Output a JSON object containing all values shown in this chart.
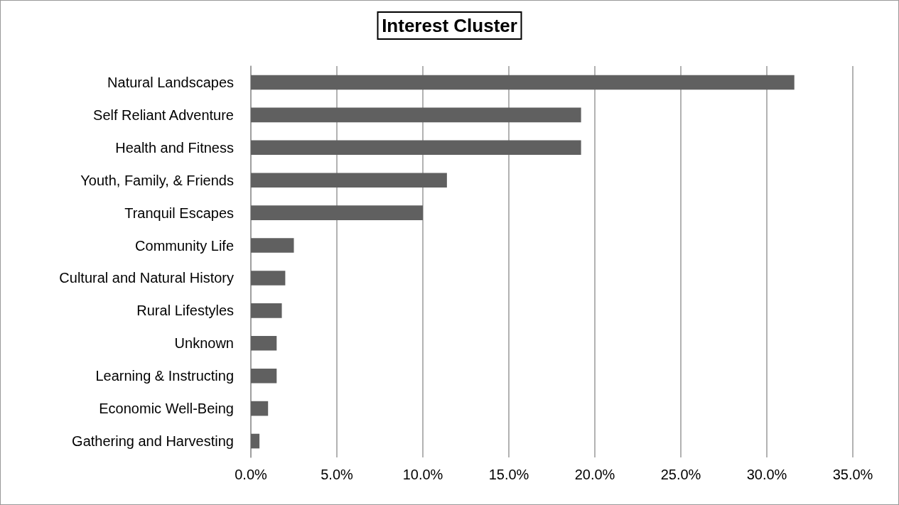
{
  "chart_data": {
    "type": "bar",
    "orientation": "horizontal",
    "title": "Interest Cluster",
    "categories": [
      "Natural Landscapes",
      "Self Reliant Adventure",
      "Health and Fitness",
      "Youth, Family, & Friends",
      "Tranquil Escapes",
      "Community Life",
      "Cultural and Natural History",
      "Rural Lifestyles",
      "Unknown",
      "Learning & Instructing",
      "Economic Well-Being",
      "Gathering and Harvesting"
    ],
    "values": [
      31.6,
      19.2,
      19.2,
      11.4,
      10.0,
      2.5,
      2.0,
      1.8,
      1.5,
      1.5,
      1.0,
      0.5
    ],
    "color": "#606060",
    "xlim": [
      0,
      35
    ],
    "xticks": [
      {
        "value": 0,
        "label": "0.0%"
      },
      {
        "value": 5,
        "label": "5.0%"
      },
      {
        "value": 10,
        "label": "10.0%"
      },
      {
        "value": 15,
        "label": "15.0%"
      },
      {
        "value": 20,
        "label": "20.0%"
      },
      {
        "value": 25,
        "label": "25.0%"
      },
      {
        "value": 30,
        "label": "30.0%"
      },
      {
        "value": 35,
        "label": "35.0%"
      }
    ],
    "grid": "x"
  }
}
